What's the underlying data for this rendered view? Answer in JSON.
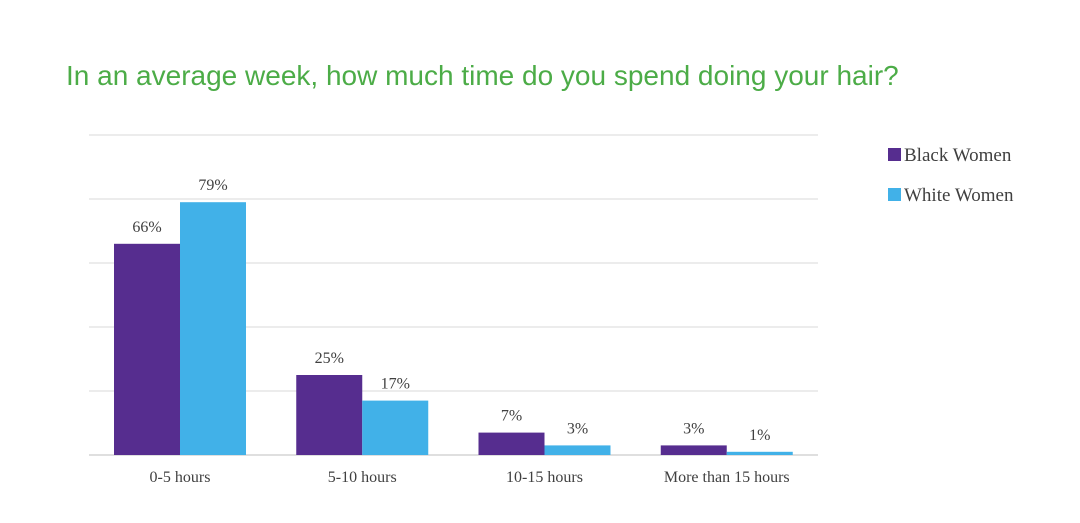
{
  "chart_data": {
    "type": "bar",
    "title": "In an average week, how much time do you spend doing your hair?",
    "categories": [
      "0-5 hours",
      "5-10 hours",
      "10-15 hours",
      "More than 15 hours"
    ],
    "series": [
      {
        "name": "Black Women",
        "values": [
          66,
          25,
          7,
          3
        ],
        "labels": [
          "66%",
          "25%",
          "7%",
          "3%"
        ],
        "color": "#562d8f"
      },
      {
        "name": "White Women",
        "values": [
          79,
          17,
          3,
          1
        ],
        "labels": [
          "79%",
          "17%",
          "3%",
          "1%"
        ],
        "color": "#41b1e8"
      }
    ],
    "ylim": [
      0,
      100
    ],
    "grid": true,
    "legend_position": "right",
    "title_color": "#4cac47",
    "xlabel": "",
    "ylabel": ""
  }
}
